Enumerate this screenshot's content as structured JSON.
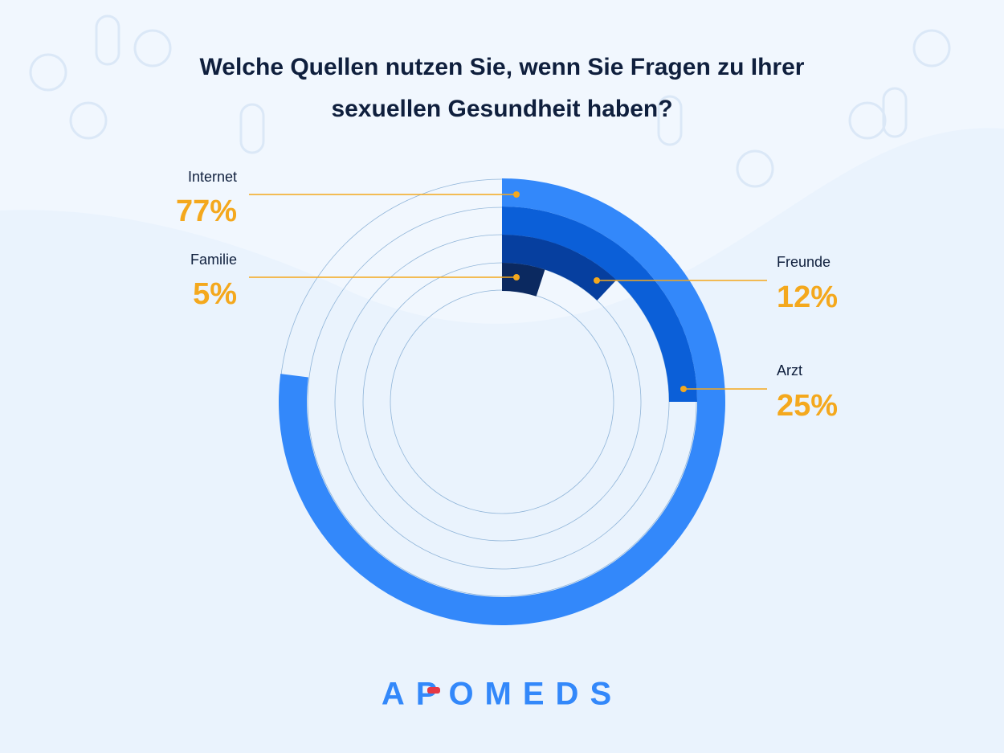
{
  "chart_data": {
    "type": "radial_bar",
    "title": "Welche Quellen nutzen Sie, wenn Sie Fragen zu Ihrer sexuellen Gesundheit haben?",
    "categories": [
      "Internet",
      "Arzt",
      "Freunde",
      "Familie"
    ],
    "values": [
      77,
      25,
      12,
      5
    ],
    "value_labels": [
      "77%",
      "25%",
      "12%",
      "5%"
    ],
    "colors": [
      "#3388fa",
      "#0b5fd8",
      "#063f9f",
      "#0b2960"
    ],
    "ylim": [
      0,
      100
    ]
  },
  "brand": "APOMEDS"
}
